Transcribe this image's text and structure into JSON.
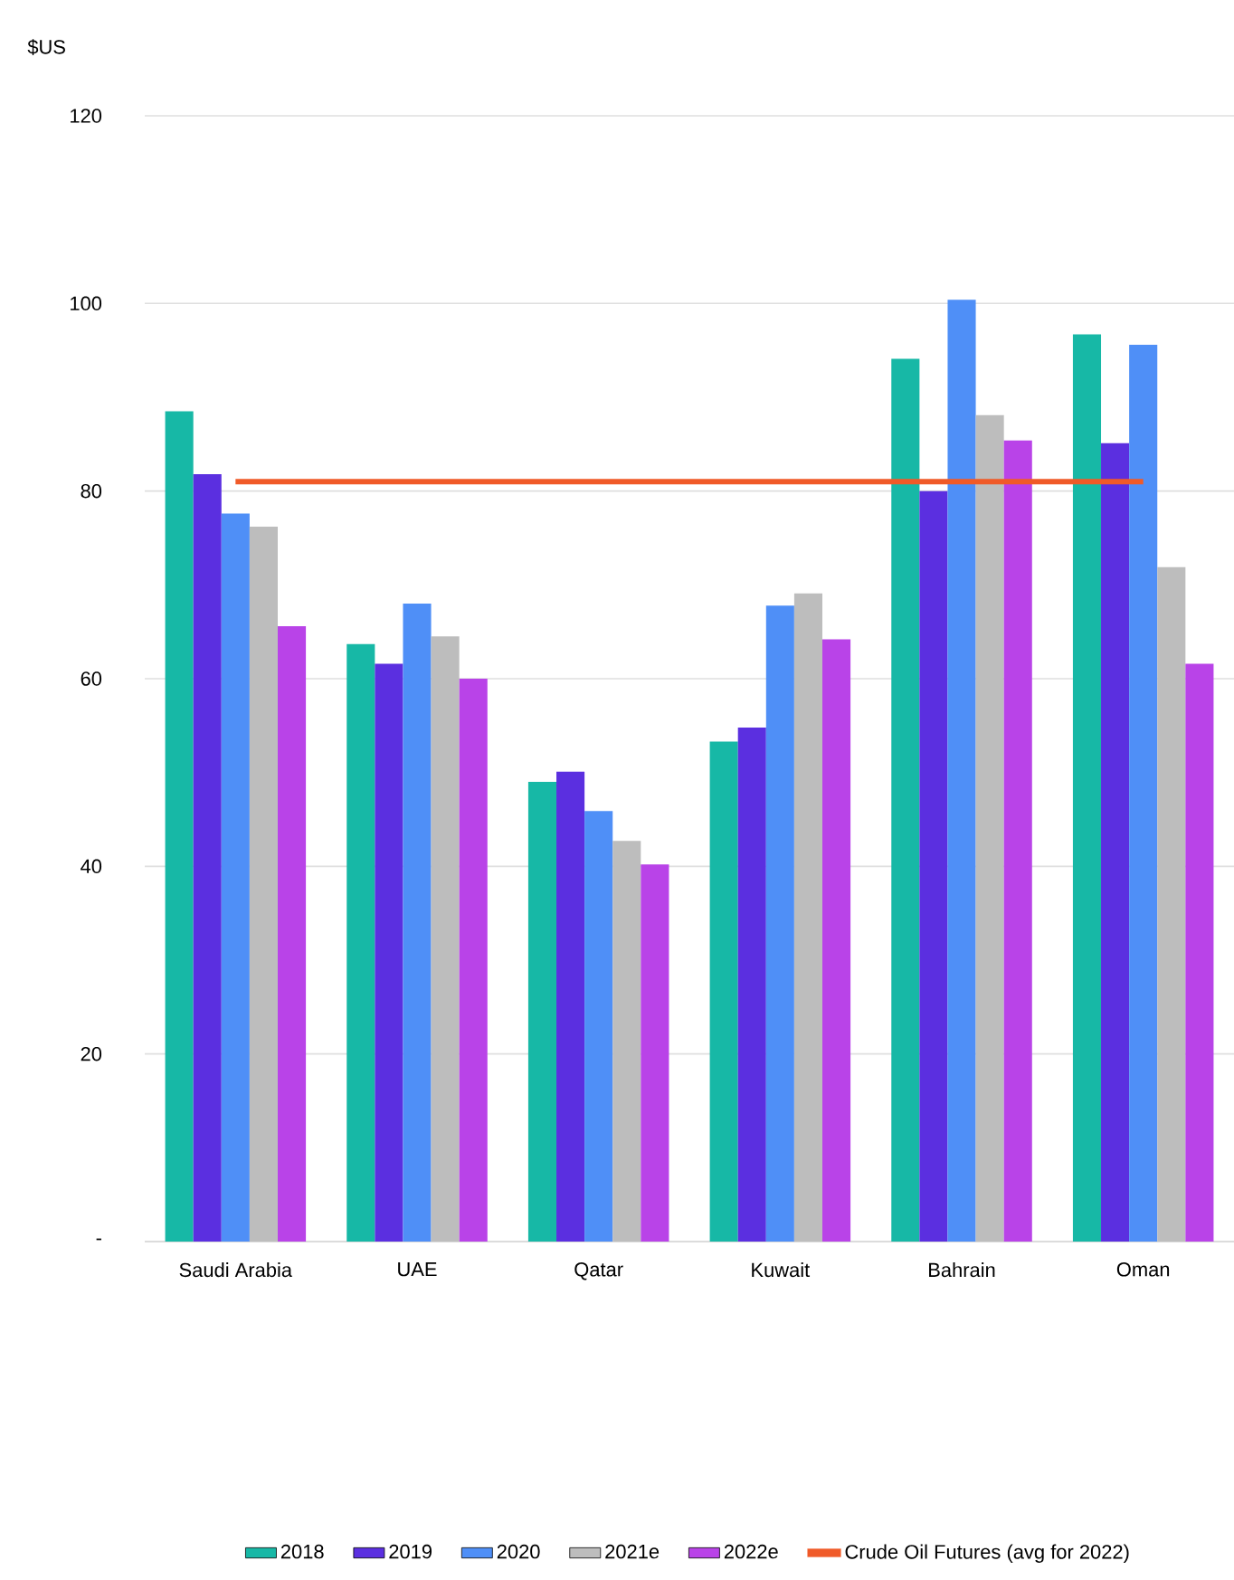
{
  "chart_data": {
    "type": "bar",
    "ylabel": "$US",
    "categories": [
      "Saudi Arabia",
      "UAE",
      "Qatar",
      "Kuwait",
      "Bahrain",
      "Oman"
    ],
    "series": [
      {
        "name": "2018",
        "color": "#17b8a6",
        "values": [
          88.5,
          63.7,
          49,
          53.3,
          94.1,
          96.7
        ]
      },
      {
        "name": "2019",
        "color": "#5b2fe0",
        "values": [
          81.8,
          61.6,
          50.1,
          54.8,
          80,
          85.1
        ]
      },
      {
        "name": "2020",
        "color": "#4f8ff7",
        "values": [
          77.6,
          68,
          45.9,
          67.8,
          100.4,
          95.6
        ]
      },
      {
        "name": "2021e",
        "color": "#bdbdbd",
        "values": [
          76.2,
          64.5,
          42.7,
          69.1,
          88.1,
          71.9
        ]
      },
      {
        "name": "2022e",
        "color": "#b943e8",
        "values": [
          65.6,
          60,
          40.2,
          64.2,
          85.4,
          61.6
        ]
      },
      {
        "name": "Crude Oil Futures (avg for 2022)",
        "type": "line",
        "color": "#f05a28",
        "values": [
          81,
          81,
          81,
          81,
          81,
          81
        ]
      }
    ],
    "ylim": [
      0,
      120
    ],
    "yticks": [
      {
        "value": 0,
        "label": "-"
      },
      20,
      40,
      60,
      80,
      100,
      120
    ],
    "grid": "y",
    "legend": "bottom"
  }
}
